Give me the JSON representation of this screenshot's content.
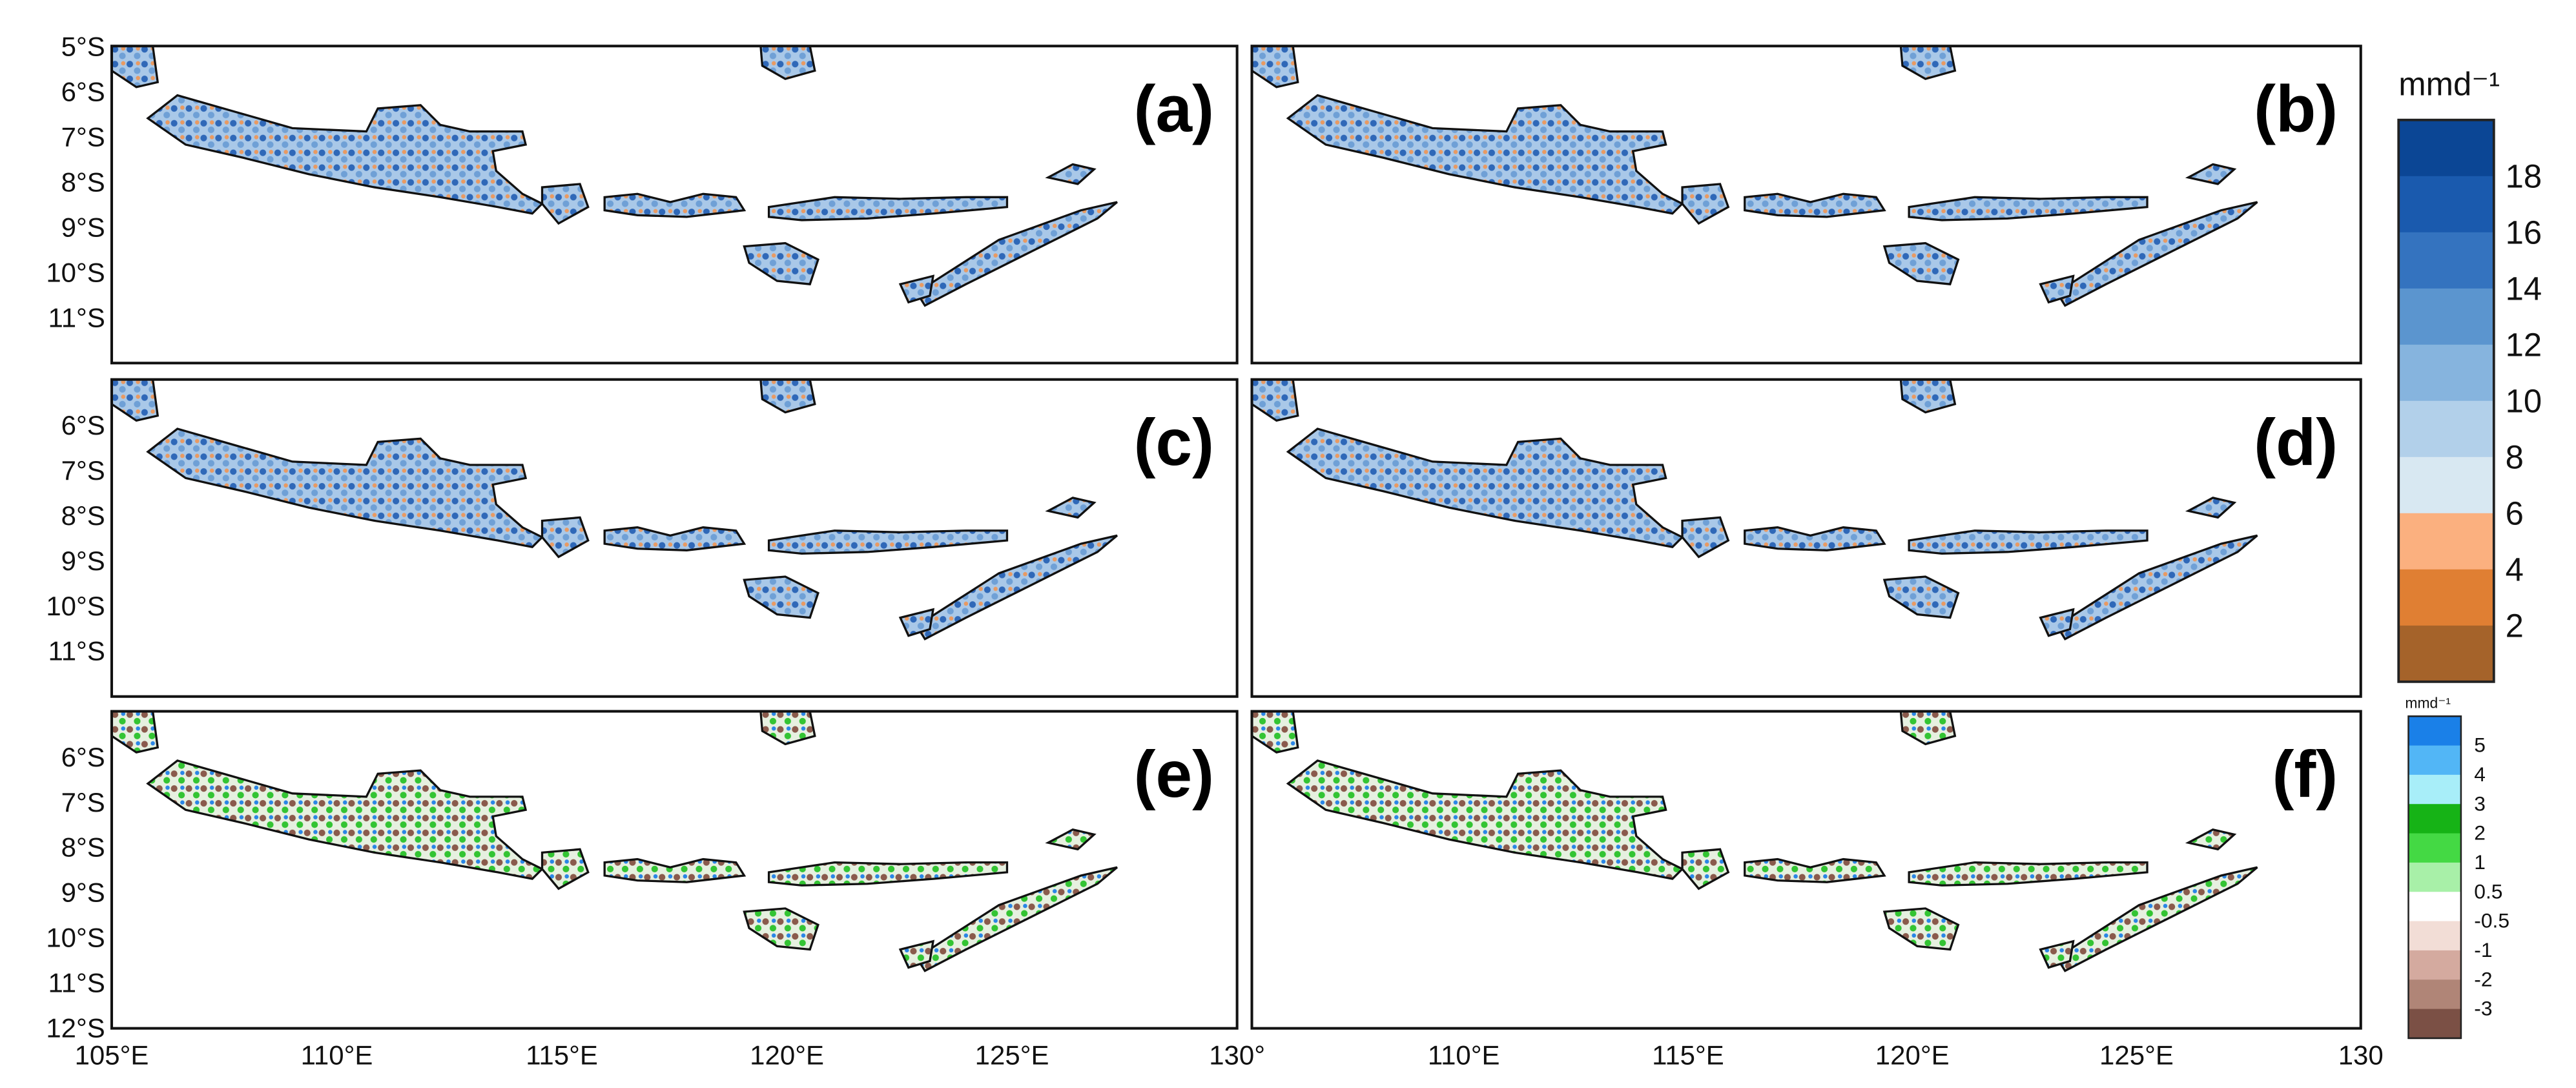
{
  "panels": [
    {
      "label": "(a)"
    },
    {
      "label": "(b)"
    },
    {
      "label": "(c)"
    },
    {
      "label": "(d)"
    },
    {
      "label": "(e)"
    },
    {
      "label": "(f)"
    }
  ],
  "rows": [
    {
      "lat_labels": [
        "5°S",
        "6°S",
        "7°S",
        "8°S",
        "9°S",
        "10°S",
        "11°S"
      ]
    },
    {
      "lat_labels": [
        "6°S",
        "7°S",
        "8°S",
        "9°S",
        "10°S",
        "11°S"
      ]
    },
    {
      "lat_labels": [
        "6°S",
        "7°S",
        "8°S",
        "9°S",
        "10°S",
        "11°S",
        "12°S"
      ]
    }
  ],
  "left_lon_labels": [
    "105°E",
    "110°E",
    "115°E",
    "120°E",
    "125°E",
    "130°"
  ],
  "right_lon_labels": [
    "110°E",
    "115°E",
    "120°E",
    "125°E",
    "130"
  ],
  "colorbar_main": {
    "title": "mmd⁻¹",
    "colors": [
      "#0b4695",
      "#1a5aae",
      "#3473bf",
      "#5b95cf",
      "#86b4de",
      "#b2d0ea",
      "#d8e8f2",
      "#fbb07f",
      "#e07f33",
      "#a5632a"
    ],
    "labels": [
      "18",
      "16",
      "14",
      "12",
      "10",
      "8",
      "6",
      "4",
      "2"
    ]
  },
  "colorbar_diff": {
    "title": "mmd⁻¹",
    "colors": [
      "#1a80e8",
      "#52b6f6",
      "#a8eef9",
      "#16b316",
      "#44d944",
      "#a8f0a8",
      "#ffffff",
      "#f2ddd6",
      "#d4aa9f",
      "#b08577",
      "#7b5045"
    ],
    "labels": [
      "5",
      "4",
      "3",
      "2",
      "1",
      "0.5",
      "-0.5",
      "-1",
      "-2",
      "-3"
    ]
  }
}
